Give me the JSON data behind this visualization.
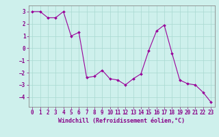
{
  "x": [
    0,
    1,
    2,
    3,
    4,
    5,
    6,
    7,
    8,
    9,
    10,
    11,
    12,
    13,
    14,
    15,
    16,
    17,
    18,
    19,
    20,
    21,
    22,
    23
  ],
  "y": [
    3.0,
    3.0,
    2.5,
    2.5,
    3.0,
    1.0,
    1.3,
    -2.4,
    -2.3,
    -1.8,
    -2.5,
    -2.6,
    -3.0,
    -2.5,
    -2.1,
    -0.2,
    1.4,
    1.9,
    -0.4,
    -2.6,
    -2.9,
    -3.0,
    -3.6,
    -4.4
  ],
  "line_color": "#990099",
  "marker": "D",
  "markersize": 2.0,
  "linewidth": 0.8,
  "bg_color": "#cef0ec",
  "grid_color": "#a8d8d0",
  "xlabel": "Windchill (Refroidissement éolien,°C)",
  "xlabel_color": "#880088",
  "tick_color": "#880088",
  "spine_color": "#888888",
  "ylim": [
    -4.8,
    3.5
  ],
  "xlim": [
    -0.5,
    23.5
  ],
  "yticks": [
    3,
    2,
    1,
    0,
    -1,
    -2,
    -3,
    -4
  ],
  "xticks": [
    0,
    1,
    2,
    3,
    4,
    5,
    6,
    7,
    8,
    9,
    10,
    11,
    12,
    13,
    14,
    15,
    16,
    17,
    18,
    19,
    20,
    21,
    22,
    23
  ],
  "tick_fontsize": 5.5,
  "xlabel_fontsize": 6.0
}
